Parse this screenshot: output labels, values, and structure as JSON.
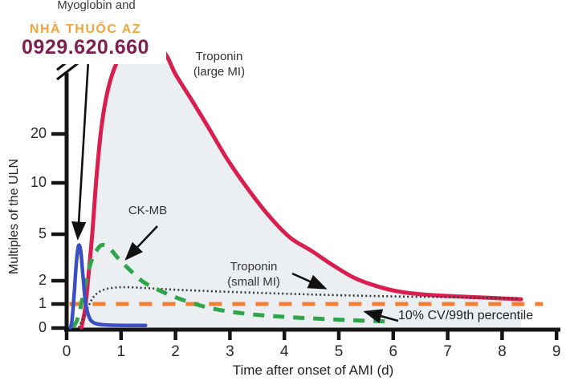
{
  "watermark": {
    "line1": "NHÀ THUỐC AZ",
    "line2": "0929.620.660",
    "line1_color": "#F2A43D",
    "line2_color": "#7E2150"
  },
  "labels": {
    "top_partial": "Myoglobin and",
    "troponin_large_line1": "Troponin",
    "troponin_large_line2": "(large MI)",
    "ck_mb": "CK-MB",
    "troponin_small_line1": "Troponin",
    "troponin_small_line2": "(small MI)",
    "percentile": "10% CV/99th percentile",
    "xlabel": "Time after onset of AMI (d)",
    "ylabel": "Multiples of the ULN"
  },
  "chart_data": {
    "type": "line",
    "xlabel": "Time after onset of AMI (d)",
    "ylabel": "Multiples of the ULN",
    "x_ticks": [
      0,
      1,
      2,
      3,
      4,
      5,
      6,
      7,
      8,
      9
    ],
    "y_ticks": [
      0,
      1,
      2,
      5,
      10,
      20
    ],
    "x_range": [
      0,
      9
    ],
    "y_scale": "nonlinear, broken axis above 20",
    "axis_break": true,
    "grid": false,
    "area_fill_color": "#ECEFF2",
    "reference_line": {
      "label": "10% CV/99th percentile",
      "value": 1,
      "x_start": 0.05,
      "x_end": 8.75,
      "color": "#F08038",
      "style": "dashed"
    },
    "series": [
      {
        "name": "troponin-large-mi",
        "label": "Troponin (large MI)",
        "color": "#D91E50",
        "style": "solid",
        "width": 5,
        "fill_under": true,
        "points": [
          [
            0.27,
            0.02
          ],
          [
            0.34,
            0.8
          ],
          [
            0.4,
            2.2
          ],
          [
            0.47,
            5.0
          ],
          [
            0.55,
            11
          ],
          [
            0.64,
            22
          ],
          [
            0.75,
            36
          ],
          [
            0.9,
            52
          ],
          [
            1.1,
            66
          ],
          [
            1.45,
            76
          ],
          [
            1.8,
            62
          ],
          [
            2.0,
            46
          ],
          [
            2.3,
            32
          ],
          [
            2.6,
            22
          ],
          [
            2.95,
            14
          ],
          [
            3.3,
            9.5
          ],
          [
            3.7,
            6.5
          ],
          [
            4.1,
            4.7
          ],
          [
            4.5,
            3.6
          ],
          [
            4.9,
            2.7
          ],
          [
            5.3,
            2.1
          ],
          [
            5.7,
            1.7
          ],
          [
            6.1,
            1.45
          ],
          [
            6.6,
            1.32
          ],
          [
            7.2,
            1.25
          ],
          [
            7.8,
            1.2
          ],
          [
            8.35,
            1.15
          ]
        ]
      },
      {
        "name": "troponin-small-mi",
        "label": "Troponin (small MI)",
        "color": "#3B3B3B",
        "style": "dotted",
        "width": 2.6,
        "fill_under": false,
        "points": [
          [
            0.22,
            0.02
          ],
          [
            0.3,
            0.4
          ],
          [
            0.4,
            0.9
          ],
          [
            0.5,
            1.25
          ],
          [
            0.65,
            1.5
          ],
          [
            0.85,
            1.62
          ],
          [
            1.1,
            1.65
          ],
          [
            1.5,
            1.6
          ],
          [
            2.0,
            1.53
          ],
          [
            2.6,
            1.47
          ],
          [
            3.3,
            1.41
          ],
          [
            4.0,
            1.36
          ],
          [
            4.8,
            1.31
          ],
          [
            5.6,
            1.27
          ],
          [
            6.4,
            1.24
          ],
          [
            7.2,
            1.22
          ],
          [
            8.3,
            1.18
          ]
        ]
      },
      {
        "name": "ck-mb",
        "label": "CK-MB",
        "color": "#2FA54A",
        "style": "dashed",
        "width": 5,
        "fill_under": false,
        "points": [
          [
            0.12,
            0.02
          ],
          [
            0.22,
            0.5
          ],
          [
            0.32,
            1.5
          ],
          [
            0.45,
            2.9
          ],
          [
            0.58,
            3.8
          ],
          [
            0.68,
            4.05
          ],
          [
            0.8,
            3.75
          ],
          [
            0.95,
            3.1
          ],
          [
            1.15,
            2.5
          ],
          [
            1.4,
            1.95
          ],
          [
            1.7,
            1.5
          ],
          [
            2.1,
            1.15
          ],
          [
            2.6,
            0.85
          ],
          [
            3.2,
            0.62
          ],
          [
            3.9,
            0.48
          ],
          [
            4.7,
            0.38
          ],
          [
            5.3,
            0.32
          ],
          [
            5.85,
            0.28
          ]
        ]
      },
      {
        "name": "myoglobin",
        "label": "Myoglobin and",
        "color": "#3A4FC4",
        "style": "solid",
        "width": 4.5,
        "fill_under": false,
        "points": [
          [
            0.07,
            0.02
          ],
          [
            0.1,
            0.35
          ],
          [
            0.14,
            1.4
          ],
          [
            0.18,
            2.9
          ],
          [
            0.22,
            4.0
          ],
          [
            0.26,
            3.55
          ],
          [
            0.3,
            2.2
          ],
          [
            0.35,
            1.0
          ],
          [
            0.42,
            0.42
          ],
          [
            0.5,
            0.22
          ],
          [
            0.62,
            0.15
          ],
          [
            0.8,
            0.12
          ],
          [
            1.1,
            0.11
          ],
          [
            1.45,
            0.11
          ]
        ]
      }
    ]
  }
}
